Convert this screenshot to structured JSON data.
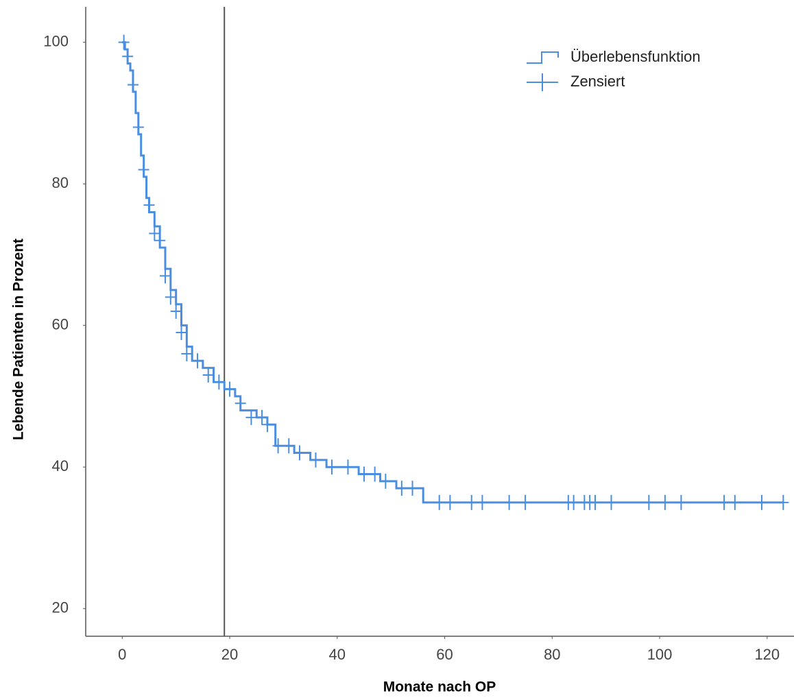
{
  "chart_data": {
    "type": "line",
    "xlabel": "Monate nach OP",
    "ylabel": "Lebende Patienten in Prozent",
    "xlim": [
      -6.8,
      125
    ],
    "ylim": [
      16.1,
      105
    ],
    "xticks": [
      0,
      20,
      40,
      60,
      80,
      100,
      120
    ],
    "yticks": [
      20,
      40,
      60,
      80,
      100
    ],
    "grid": false,
    "legend": "upper right",
    "reference_line": {
      "x": 19,
      "color": "#555555"
    },
    "series": [
      {
        "name": "Überlebensfunktion",
        "type": "step",
        "color": "#4a8ee0",
        "x": [
          0,
          0.5,
          1,
          1.5,
          2,
          2.5,
          3,
          3.5,
          4,
          4.5,
          5,
          6,
          7,
          8,
          9,
          10,
          11,
          12,
          13,
          15,
          17,
          19,
          21,
          22,
          25,
          27,
          28.5,
          32,
          35,
          38,
          44,
          48,
          51,
          56,
          123
        ],
        "values": [
          100,
          99,
          97,
          96,
          93,
          90,
          87,
          84,
          81,
          78,
          76,
          74,
          71,
          68,
          65,
          63,
          60,
          57,
          55,
          54,
          52,
          51,
          50,
          48,
          47,
          46,
          43,
          42,
          41,
          40,
          39,
          38,
          37,
          35,
          35
        ]
      },
      {
        "name": "Zensiert",
        "type": "scatter",
        "marker": "plus",
        "color": "#4a8ee0",
        "x": [
          0.3,
          1,
          2,
          3,
          4,
          5,
          6,
          7,
          8,
          9,
          10,
          11,
          12,
          14,
          16,
          18,
          20,
          22,
          24,
          26,
          27,
          29,
          31,
          33,
          36,
          39,
          42,
          45,
          47,
          49,
          52,
          54,
          59,
          61,
          65,
          67,
          72,
          75,
          83,
          84,
          86,
          87,
          88,
          91,
          98,
          101,
          104,
          112,
          114,
          119,
          123
        ],
        "values": [
          100,
          98,
          94,
          88,
          82,
          77,
          73,
          72,
          67,
          64,
          62,
          59,
          56,
          55,
          53,
          52,
          51,
          49,
          47,
          47,
          46,
          43,
          43,
          42,
          41,
          40,
          40,
          39,
          39,
          38,
          37,
          37,
          35,
          35,
          35,
          35,
          35,
          35,
          35,
          35,
          35,
          35,
          35,
          35,
          35,
          35,
          35,
          35,
          35,
          35,
          35
        ]
      }
    ]
  }
}
